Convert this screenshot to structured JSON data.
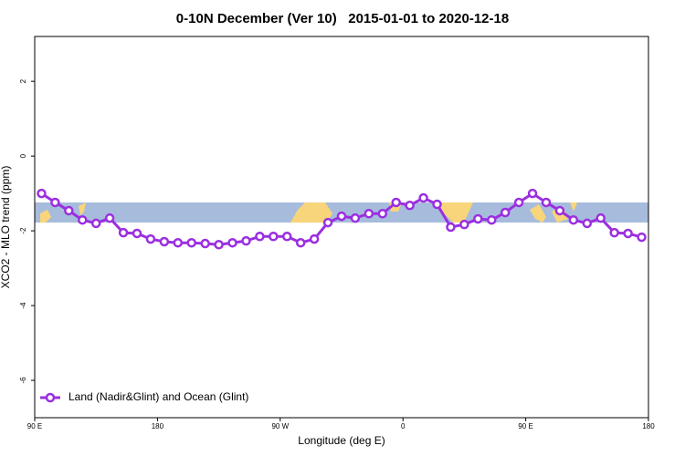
{
  "chart_data": {
    "type": "line",
    "title": "0-10N December (Ver 10)   2015-01-01 to 2020-12-18",
    "xlabel": "Longitude (deg E)",
    "ylabel": "XCO2 - MLO trend (ppm)",
    "xlim": [
      90,
      540
    ],
    "ylim": [
      -7,
      3.2
    ],
    "xticks": [
      {
        "value": 90,
        "label": "90 E"
      },
      180,
      {
        "value": 270,
        "label": "90 W"
      },
      {
        "value": 360,
        "label": "0"
      },
      {
        "value": 450,
        "label": "90 E"
      },
      {
        "value": 540,
        "label": "180"
      }
    ],
    "yticks": [
      2,
      0,
      -2,
      -4,
      -6
    ],
    "legend": "bottom-left",
    "x": [
      95,
      105,
      115,
      125,
      135,
      145,
      155,
      165,
      175,
      185,
      195,
      205,
      215,
      225,
      235,
      245,
      255,
      265,
      275,
      285,
      295,
      305,
      315,
      325,
      335,
      345,
      355,
      365,
      375,
      385,
      395,
      405,
      415,
      425,
      435,
      445,
      455,
      465,
      475,
      485,
      495,
      505,
      515,
      525,
      535
    ],
    "series": [
      {
        "name": "Land (Nadir&Glint) and Ocean (Glint)",
        "color": "#9b2fe0",
        "values": [
          -1.0,
          -1.24,
          -1.46,
          -1.71,
          -1.8,
          -1.66,
          -2.05,
          -2.07,
          -2.22,
          -2.29,
          -2.32,
          -2.32,
          -2.34,
          -2.37,
          -2.32,
          -2.27,
          -2.15,
          -2.15,
          -2.15,
          -2.32,
          -2.22,
          -1.78,
          -1.61,
          -1.66,
          -1.54,
          -1.54,
          -1.24,
          -1.32,
          -1.12,
          -1.29,
          -1.9,
          -1.83,
          -1.68,
          -1.71,
          -1.51,
          -1.24,
          -1.0,
          -1.24,
          -1.46,
          -1.71,
          -1.8,
          -1.66,
          -2.05,
          -2.07,
          -2.17
        ]
      }
    ]
  }
}
